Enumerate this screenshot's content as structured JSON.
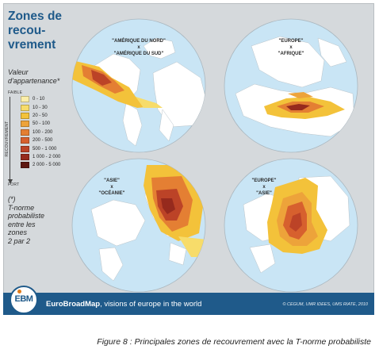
{
  "title": {
    "lines": [
      "Zones de",
      "recou-",
      "vrement"
    ]
  },
  "legend": {
    "heading": "Valeur d'appartenance*",
    "top_label": "FAIBLE",
    "bottom_label": "FORT",
    "axis_label": "RECOUVREMENT",
    "items": [
      {
        "label": "0 - 10",
        "color": "#fbeea9"
      },
      {
        "label": "10 - 30",
        "color": "#f7dc6a"
      },
      {
        "label": "20 - 50",
        "color": "#f3c23a"
      },
      {
        "label": "50 - 100",
        "color": "#eda33a"
      },
      {
        "label": "100 - 200",
        "color": "#e47f33"
      },
      {
        "label": "200 - 500",
        "color": "#d7602e"
      },
      {
        "label": "500 - 1 000",
        "color": "#bc4327"
      },
      {
        "label": "1 000 - 2 000",
        "color": "#962a1d"
      },
      {
        "label": "2 000 - 5 000",
        "color": "#5e1711"
      }
    ]
  },
  "note": {
    "lines": [
      "(*)",
      "T-norme",
      "probabiliste",
      "entre les",
      "zones",
      "2 par 2"
    ]
  },
  "maps": [
    {
      "label_top": "\"AMÉRIQUE DU NORD\"",
      "label_x": "x",
      "label_bottom": "\"AMÉRIQUE DU SUD\""
    },
    {
      "label_top": "\"EUROPE\"",
      "label_x": "x",
      "label_bottom": "\"AFRIQUE\""
    },
    {
      "label_top": "\"ASIE\"",
      "label_x": "x",
      "label_bottom": "\"OCÉANIE\""
    },
    {
      "label_top": "\"EUROPE\"",
      "label_x": "x",
      "label_bottom": "\"ASIE\""
    }
  ],
  "footer": {
    "logo_text": "EBM",
    "brand_name": "EuroBroadMap",
    "brand_tagline": ", visions of europe in the world",
    "credit": "© CEGUM, UMR IDEES, UMS RIATE, 2010"
  },
  "caption": "Figure 8 : Principales zones de recouvrement avec la T-norme probabiliste",
  "colors": {
    "ocean": "#c9e5f5",
    "land": "#ffffff",
    "panel": "#d5d9dc",
    "brand": "#1f5a8a"
  }
}
